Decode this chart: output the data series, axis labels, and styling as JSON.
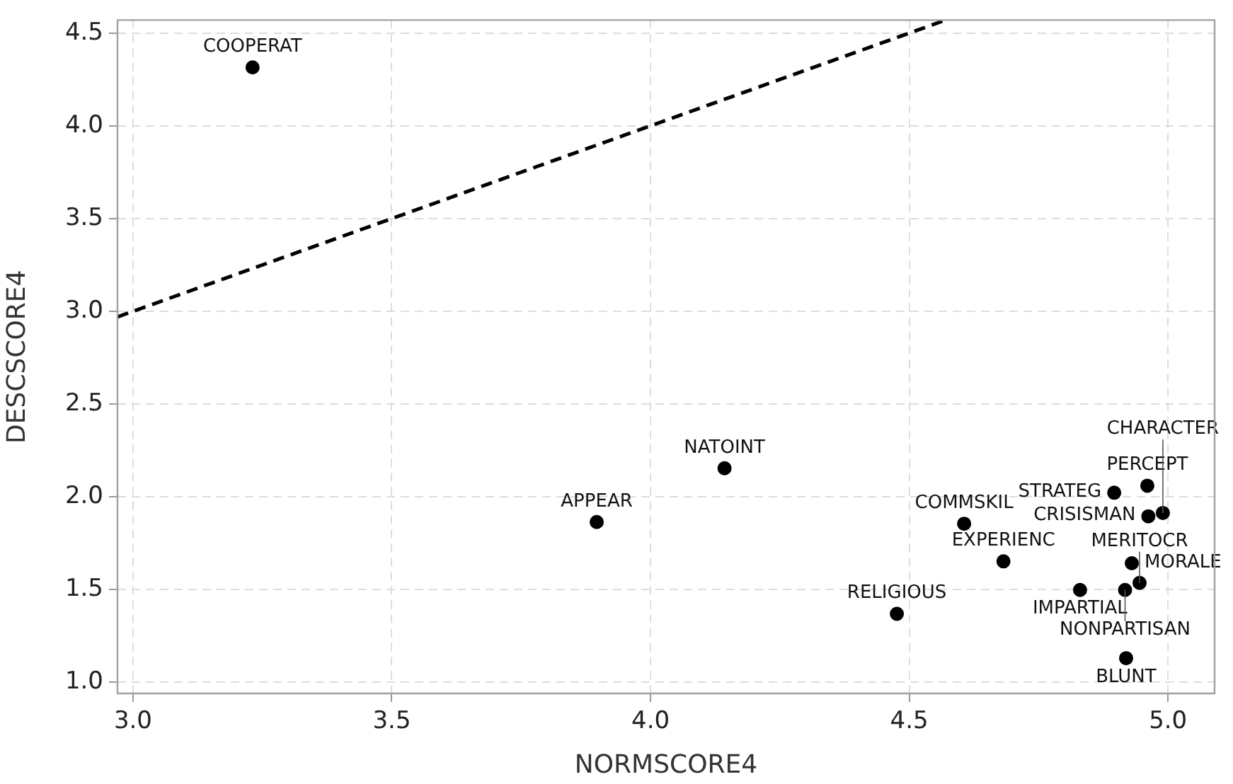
{
  "chart_data": {
    "type": "scatter",
    "xlabel": "NORMSCORE4",
    "ylabel": "DESCSCORE4",
    "x": [
      3.231,
      4.143,
      3.896,
      4.476,
      4.606,
      4.682,
      4.83,
      4.917,
      4.945,
      4.93,
      4.919,
      4.896,
      4.96,
      4.962,
      4.99
    ],
    "series": [
      {
        "type": "scatter",
        "color": "#000000",
        "marker": "circle",
        "values": [
          4.315,
          2.154,
          1.864,
          1.369,
          1.855,
          1.652,
          1.498,
          1.498,
          1.536,
          1.642,
          1.13,
          2.022,
          2.06,
          1.895,
          1.913
        ]
      },
      {
        "type": "line",
        "color": "#000000",
        "line_style": "dashed",
        "marker": "none",
        "x": [
          2.97,
          4.57
        ],
        "values": [
          2.97,
          4.57
        ]
      }
    ],
    "annotations": [
      {
        "text": "COOPERAT",
        "x": 3.231,
        "y": 4.315
      },
      {
        "text": "NATOINT",
        "x": 4.143,
        "y": 2.154
      },
      {
        "text": "APPEAR",
        "x": 3.896,
        "y": 1.864
      },
      {
        "text": "RELIGIOUS",
        "x": 4.476,
        "y": 1.369
      },
      {
        "text": "COMMSKIL",
        "x": 4.606,
        "y": 1.855
      },
      {
        "text": "EXPERIENC",
        "x": 4.682,
        "y": 1.652
      },
      {
        "text": "IMPARTIAL",
        "x": 4.83,
        "y": 1.498
      },
      {
        "text": "NONPARTISAN",
        "x": 4.917,
        "y": 1.498
      },
      {
        "text": "MERITOCR",
        "x": 4.945,
        "y": 1.536
      },
      {
        "text": "MORALE",
        "x": 4.93,
        "y": 1.642
      },
      {
        "text": "BLUNT",
        "x": 4.919,
        "y": 1.13
      },
      {
        "text": "STRATEG",
        "x": 4.896,
        "y": 2.022
      },
      {
        "text": "PERCEPT",
        "x": 4.96,
        "y": 2.06
      },
      {
        "text": "CRISISMAN",
        "x": 4.962,
        "y": 1.895
      },
      {
        "text": "CHARACTER",
        "x": 4.99,
        "y": 1.913
      }
    ],
    "xlim": [
      2.97,
      5.09
    ],
    "xticks": [
      {
        "value": 3,
        "label": "3.0"
      },
      3.5,
      {
        "value": 4,
        "label": "4.0"
      },
      4.5,
      {
        "value": 5,
        "label": "5.0"
      }
    ],
    "ylim": [
      0.94,
      4.57
    ],
    "yticks": [
      {
        "value": 1,
        "label": "1.0"
      },
      1.5,
      {
        "value": 2,
        "label": "2.0"
      },
      2.5,
      {
        "value": 3,
        "label": "3.0"
      },
      3.5,
      {
        "value": 4,
        "label": "4.0"
      },
      4.5
    ],
    "grid": true,
    "legend": false
  }
}
